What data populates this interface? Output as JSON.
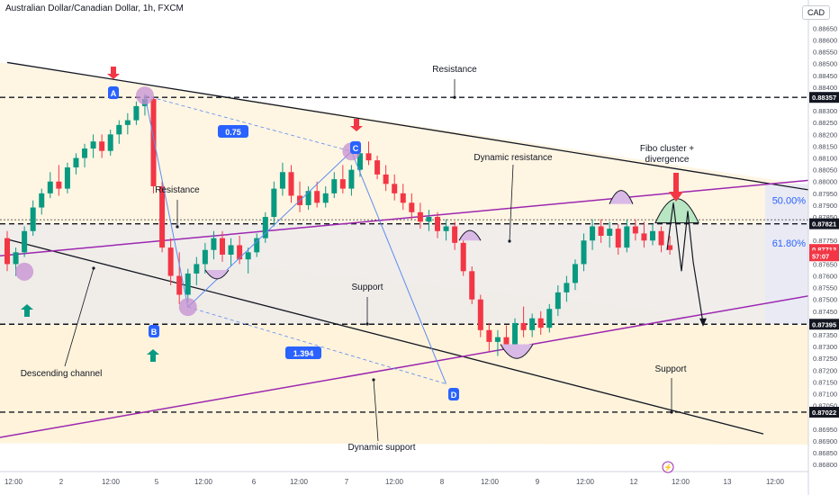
{
  "header": {
    "title": "Australian Dollar/Canadian Dollar, 1h, FXCM",
    "currency": "CAD"
  },
  "colors": {
    "up": "#089981",
    "down": "#f23645",
    "channel_black": "#131722",
    "channel_purple": "#9c27b0",
    "abcd_line": "#5b8def",
    "marker_fill": "#c48fd1",
    "label_blue": "#2962ff",
    "fib_text": "#2962ff"
  },
  "chart_data": {
    "type": "candlestick",
    "symbol": "AUDCAD",
    "timeframe": "1h",
    "x_ticks": [
      "12:00",
      "2",
      "12:00",
      "5",
      "12:00",
      "6",
      "12:00",
      "7",
      "12:00",
      "8",
      "12:00",
      "9",
      "12:00",
      "12",
      "12:00",
      "13",
      "12:00"
    ],
    "y_ticks": [
      "0.88700",
      "0.88650",
      "0.88600",
      "0.88550",
      "0.88500",
      "0.88450",
      "0.88400",
      "0.88300",
      "0.88250",
      "0.88200",
      "0.88150",
      "0.88100",
      "0.88050",
      "0.88000",
      "0.87950",
      "0.87900",
      "0.87850",
      "0.87750",
      "0.87650",
      "0.87600",
      "0.87550",
      "0.87500",
      "0.87450",
      "0.87350",
      "0.87300",
      "0.87250",
      "0.87200",
      "0.87150",
      "0.87100",
      "0.87050",
      "0.86950",
      "0.86900",
      "0.86850",
      "0.86800"
    ],
    "ylim": [
      0.8677,
      0.8877
    ],
    "price_labels": [
      {
        "text": "0.88357",
        "value": 0.88357,
        "style": "dark"
      },
      {
        "text": "0.87821",
        "value": 0.87821,
        "style": "dark"
      },
      {
        "text": "0.87712",
        "value": 0.87712,
        "style": "red"
      },
      {
        "text": "57:07",
        "value": 0.87685,
        "style": "red"
      },
      {
        "text": "0.87395",
        "value": 0.87395,
        "style": "dark"
      },
      {
        "text": "0.87022",
        "value": 0.87022,
        "style": "dark"
      }
    ],
    "horizontal_levels": [
      0.88357,
      0.87821,
      0.87395,
      0.87022
    ],
    "fib_levels": [
      {
        "label": "50.00%",
        "value": 0.8792
      },
      {
        "label": "61.80%",
        "value": 0.8774
      }
    ],
    "candles": [
      {
        "o": 0.8776,
        "h": 0.8779,
        "l": 0.8762,
        "c": 0.8765
      },
      {
        "o": 0.8765,
        "h": 0.8772,
        "l": 0.876,
        "c": 0.877
      },
      {
        "o": 0.877,
        "h": 0.8781,
        "l": 0.8768,
        "c": 0.8779
      },
      {
        "o": 0.8779,
        "h": 0.8792,
        "l": 0.8777,
        "c": 0.8789
      },
      {
        "o": 0.8789,
        "h": 0.8797,
        "l": 0.8786,
        "c": 0.8795
      },
      {
        "o": 0.8795,
        "h": 0.8804,
        "l": 0.8793,
        "c": 0.88
      },
      {
        "o": 0.88,
        "h": 0.8807,
        "l": 0.8794,
        "c": 0.8797
      },
      {
        "o": 0.8797,
        "h": 0.8808,
        "l": 0.8795,
        "c": 0.8806
      },
      {
        "o": 0.8806,
        "h": 0.8812,
        "l": 0.8803,
        "c": 0.881
      },
      {
        "o": 0.881,
        "h": 0.8816,
        "l": 0.8806,
        "c": 0.8814
      },
      {
        "o": 0.8814,
        "h": 0.882,
        "l": 0.881,
        "c": 0.8817
      },
      {
        "o": 0.8817,
        "h": 0.882,
        "l": 0.881,
        "c": 0.8813
      },
      {
        "o": 0.8813,
        "h": 0.8822,
        "l": 0.8811,
        "c": 0.882
      },
      {
        "o": 0.882,
        "h": 0.8826,
        "l": 0.8816,
        "c": 0.8824
      },
      {
        "o": 0.8824,
        "h": 0.8829,
        "l": 0.882,
        "c": 0.8826
      },
      {
        "o": 0.8826,
        "h": 0.8834,
        "l": 0.8824,
        "c": 0.8832
      },
      {
        "o": 0.8832,
        "h": 0.8837,
        "l": 0.8828,
        "c": 0.8835
      },
      {
        "o": 0.8835,
        "h": 0.8836,
        "l": 0.8795,
        "c": 0.8798
      },
      {
        "o": 0.8798,
        "h": 0.88,
        "l": 0.877,
        "c": 0.8772
      },
      {
        "o": 0.8772,
        "h": 0.8776,
        "l": 0.8756,
        "c": 0.876
      },
      {
        "o": 0.876,
        "h": 0.877,
        "l": 0.8748,
        "c": 0.8752
      },
      {
        "o": 0.8752,
        "h": 0.8763,
        "l": 0.8749,
        "c": 0.8761
      },
      {
        "o": 0.8761,
        "h": 0.8768,
        "l": 0.8756,
        "c": 0.8765
      },
      {
        "o": 0.8765,
        "h": 0.8774,
        "l": 0.8761,
        "c": 0.8771
      },
      {
        "o": 0.8771,
        "h": 0.8779,
        "l": 0.8767,
        "c": 0.8776
      },
      {
        "o": 0.8776,
        "h": 0.8779,
        "l": 0.8766,
        "c": 0.8769
      },
      {
        "o": 0.8769,
        "h": 0.8776,
        "l": 0.8764,
        "c": 0.8773
      },
      {
        "o": 0.8773,
        "h": 0.8777,
        "l": 0.8765,
        "c": 0.8767
      },
      {
        "o": 0.8767,
        "h": 0.8772,
        "l": 0.8761,
        "c": 0.877
      },
      {
        "o": 0.877,
        "h": 0.8778,
        "l": 0.8768,
        "c": 0.8776
      },
      {
        "o": 0.8776,
        "h": 0.8787,
        "l": 0.8774,
        "c": 0.8785
      },
      {
        "o": 0.8785,
        "h": 0.88,
        "l": 0.8781,
        "c": 0.8797
      },
      {
        "o": 0.8797,
        "h": 0.8808,
        "l": 0.8794,
        "c": 0.8804
      },
      {
        "o": 0.8804,
        "h": 0.8807,
        "l": 0.8791,
        "c": 0.8794
      },
      {
        "o": 0.8794,
        "h": 0.88,
        "l": 0.8787,
        "c": 0.879
      },
      {
        "o": 0.879,
        "h": 0.8798,
        "l": 0.8788,
        "c": 0.8796
      },
      {
        "o": 0.8796,
        "h": 0.88,
        "l": 0.8789,
        "c": 0.8791
      },
      {
        "o": 0.8791,
        "h": 0.8798,
        "l": 0.8789,
        "c": 0.8795
      },
      {
        "o": 0.8795,
        "h": 0.8804,
        "l": 0.8793,
        "c": 0.8801
      },
      {
        "o": 0.8801,
        "h": 0.8807,
        "l": 0.8795,
        "c": 0.8797
      },
      {
        "o": 0.8797,
        "h": 0.8807,
        "l": 0.8794,
        "c": 0.8805
      },
      {
        "o": 0.8805,
        "h": 0.8815,
        "l": 0.8802,
        "c": 0.8812
      },
      {
        "o": 0.8812,
        "h": 0.8817,
        "l": 0.8807,
        "c": 0.8809
      },
      {
        "o": 0.8809,
        "h": 0.8811,
        "l": 0.8801,
        "c": 0.8803
      },
      {
        "o": 0.8803,
        "h": 0.8807,
        "l": 0.8796,
        "c": 0.8799
      },
      {
        "o": 0.8799,
        "h": 0.8803,
        "l": 0.8792,
        "c": 0.8795
      },
      {
        "o": 0.8795,
        "h": 0.8799,
        "l": 0.8788,
        "c": 0.8791
      },
      {
        "o": 0.8791,
        "h": 0.8795,
        "l": 0.8784,
        "c": 0.8787
      },
      {
        "o": 0.8787,
        "h": 0.8791,
        "l": 0.878,
        "c": 0.8783
      },
      {
        "o": 0.8783,
        "h": 0.8788,
        "l": 0.8779,
        "c": 0.8785
      },
      {
        "o": 0.8785,
        "h": 0.8787,
        "l": 0.8776,
        "c": 0.8779
      },
      {
        "o": 0.8779,
        "h": 0.8784,
        "l": 0.8775,
        "c": 0.8781
      },
      {
        "o": 0.8781,
        "h": 0.8783,
        "l": 0.8771,
        "c": 0.8774
      },
      {
        "o": 0.8774,
        "h": 0.8776,
        "l": 0.876,
        "c": 0.8762
      },
      {
        "o": 0.8762,
        "h": 0.8764,
        "l": 0.8748,
        "c": 0.875
      },
      {
        "o": 0.875,
        "h": 0.8752,
        "l": 0.8734,
        "c": 0.8737
      },
      {
        "o": 0.8737,
        "h": 0.874,
        "l": 0.8728,
        "c": 0.8732
      },
      {
        "o": 0.8732,
        "h": 0.8737,
        "l": 0.8726,
        "c": 0.8734
      },
      {
        "o": 0.8734,
        "h": 0.8739,
        "l": 0.8729,
        "c": 0.8731
      },
      {
        "o": 0.8731,
        "h": 0.8742,
        "l": 0.8729,
        "c": 0.874
      },
      {
        "o": 0.874,
        "h": 0.8747,
        "l": 0.8734,
        "c": 0.8737
      },
      {
        "o": 0.8737,
        "h": 0.8744,
        "l": 0.8734,
        "c": 0.8742
      },
      {
        "o": 0.8742,
        "h": 0.8745,
        "l": 0.8735,
        "c": 0.8738
      },
      {
        "o": 0.8738,
        "h": 0.8748,
        "l": 0.8736,
        "c": 0.8746
      },
      {
        "o": 0.8746,
        "h": 0.8756,
        "l": 0.8743,
        "c": 0.8753
      },
      {
        "o": 0.8753,
        "h": 0.876,
        "l": 0.8749,
        "c": 0.8757
      },
      {
        "o": 0.8757,
        "h": 0.8767,
        "l": 0.8754,
        "c": 0.8765
      },
      {
        "o": 0.8765,
        "h": 0.8778,
        "l": 0.8762,
        "c": 0.8775
      },
      {
        "o": 0.8775,
        "h": 0.8784,
        "l": 0.8771,
        "c": 0.8781
      },
      {
        "o": 0.8781,
        "h": 0.8784,
        "l": 0.8774,
        "c": 0.8777
      },
      {
        "o": 0.8777,
        "h": 0.8783,
        "l": 0.8772,
        "c": 0.878
      },
      {
        "o": 0.878,
        "h": 0.8782,
        "l": 0.8769,
        "c": 0.8772
      },
      {
        "o": 0.8772,
        "h": 0.8784,
        "l": 0.877,
        "c": 0.8781
      },
      {
        "o": 0.8781,
        "h": 0.8784,
        "l": 0.8775,
        "c": 0.8778
      },
      {
        "o": 0.8778,
        "h": 0.8783,
        "l": 0.8772,
        "c": 0.8775
      },
      {
        "o": 0.8775,
        "h": 0.8782,
        "l": 0.8773,
        "c": 0.8779
      },
      {
        "o": 0.8779,
        "h": 0.8781,
        "l": 0.877,
        "c": 0.8773
      },
      {
        "o": 0.8773,
        "h": 0.8777,
        "l": 0.8769,
        "c": 0.8771
      }
    ],
    "annotations": [
      {
        "text": "Resistance",
        "kind": "label"
      },
      {
        "text": "Resistance",
        "kind": "label"
      },
      {
        "text": "Dynamic resistance",
        "kind": "label"
      },
      {
        "text": "Fibo cluster +",
        "kind": "label"
      },
      {
        "text": "divergence",
        "kind": "label"
      },
      {
        "text": "Support",
        "kind": "label"
      },
      {
        "text": "Support",
        "kind": "label"
      },
      {
        "text": "Descending channel",
        "kind": "label"
      },
      {
        "text": "Dynamic support",
        "kind": "label"
      },
      {
        "text": "0.75",
        "kind": "ratio"
      },
      {
        "text": "1.394",
        "kind": "ratio"
      }
    ],
    "abcd_points": [
      "A",
      "B",
      "C",
      "D"
    ],
    "grid": false
  }
}
